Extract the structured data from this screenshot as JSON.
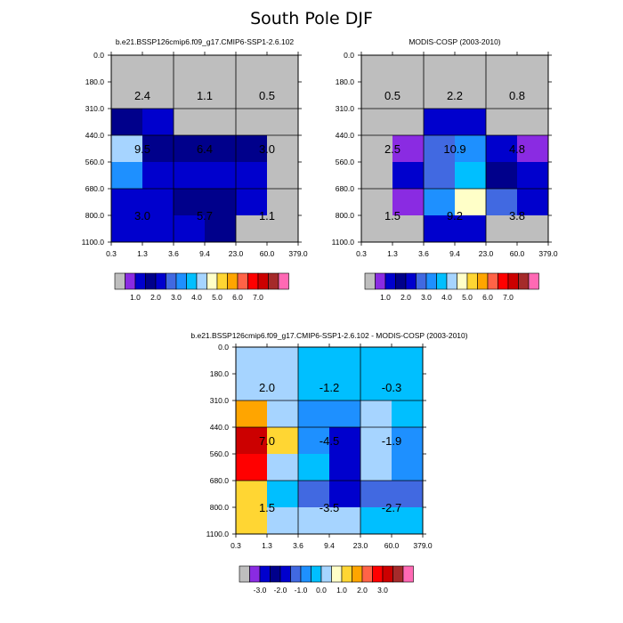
{
  "title": "South Pole DJF",
  "chart_data": [
    {
      "type": "heatmap",
      "panel": "model",
      "title": "b.e21.BSSP126cmip6.f09_g17.CMIP6-SSP1-2.6.102",
      "xlabel": "",
      "ylabel": "",
      "x_ticks": [
        "0.3",
        "1.3",
        "3.6",
        "9.4",
        "23.0",
        "60.0",
        "379.0"
      ],
      "y_ticks": [
        "0.0",
        "180.0",
        "310.0",
        "440.0",
        "560.0",
        "680.0",
        "800.0",
        "1100.0"
      ],
      "cells": [
        [
          "missing",
          "missing",
          "missing",
          "missing",
          "missing",
          "missing"
        ],
        [
          "missing",
          "missing",
          "missing",
          "missing",
          "missing",
          "missing"
        ],
        [
          "1.0-1.5",
          "0.5-1.0",
          "missing",
          "missing",
          "missing",
          "missing"
        ],
        [
          "3.5-4.0",
          "1.0-1.5",
          "1.0-1.5",
          "1.0-1.5",
          "1.0-1.5",
          "missing"
        ],
        [
          "2.5-3.0",
          "1.5-2.0",
          "1.5-2.0",
          "1.5-2.0",
          "1.5-2.0",
          "missing"
        ],
        [
          "0.5-1.0",
          "0.5-1.0",
          "1.0-1.5",
          "1.0-1.5",
          "0.5-1.0",
          "missing"
        ],
        [
          "0.5-1.0",
          "0.5-1.0",
          "1.5-2.0",
          "1.0-1.5",
          "missing",
          "missing"
        ]
      ],
      "values": [
        [
          "2.4",
          "1.1",
          "0.5"
        ],
        [
          "9.5",
          "6.4",
          "3.0"
        ],
        [
          "3.0",
          "5.7",
          "1.1"
        ]
      ],
      "colorbar": {
        "levels": [
          "1.0",
          "2.0",
          "3.0",
          "4.0",
          "5.0",
          "6.0",
          "7.0"
        ],
        "colors": [
          "#BEBEBE",
          "#8A2BE2",
          "#0000CD",
          "#00008B",
          "#0000CD",
          "#4169E1",
          "#1E90FF",
          "#00BFFF",
          "#A6D4FF",
          "#FFFFC8",
          "#FFD633",
          "#FFA500",
          "#FF6347",
          "#FF0000",
          "#CC0000",
          "#A52A2A",
          "#FF69B4"
        ]
      }
    },
    {
      "type": "heatmap",
      "panel": "observation",
      "title": "MODIS-COSP (2003-2010)",
      "xlabel": "",
      "ylabel": "",
      "x_ticks": [
        "0.3",
        "1.3",
        "3.6",
        "9.4",
        "23.0",
        "60.0",
        "379.0"
      ],
      "y_ticks": [
        "0.0",
        "180.0",
        "310.0",
        "440.0",
        "560.0",
        "680.0",
        "800.0",
        "1100.0"
      ],
      "cells": [
        [
          "missing",
          "missing",
          "missing",
          "missing",
          "missing",
          "missing"
        ],
        [
          "missing",
          "missing",
          "missing",
          "missing",
          "missing",
          "missing"
        ],
        [
          "missing",
          "missing",
          "0.5-1.0",
          "0.5-1.0",
          "missing",
          "missing"
        ],
        [
          "missing",
          "0.0-0.5",
          "2.0-2.5",
          "2.5-3.0",
          "0.5-1.0",
          "0.0-0.5"
        ],
        [
          "missing",
          "0.5-1.0",
          "2.0-2.5",
          "3.0-3.5",
          "1.0-1.5",
          "0.5-1.0"
        ],
        [
          "missing",
          "0.0-0.5",
          "2.5-3.0",
          "4.0-4.5",
          "2.0-2.5",
          "0.5-1.0"
        ],
        [
          "missing",
          "missing",
          "0.5-1.0",
          "0.5-1.0",
          "missing",
          "missing"
        ]
      ],
      "values": [
        [
          "0.5",
          "2.2",
          "0.8"
        ],
        [
          "2.5",
          "10.9",
          "4.8"
        ],
        [
          "1.5",
          "9.2",
          "3.8"
        ]
      ],
      "colorbar": {
        "levels": [
          "1.0",
          "2.0",
          "3.0",
          "4.0",
          "5.0",
          "6.0",
          "7.0"
        ],
        "colors": [
          "#BEBEBE",
          "#8A2BE2",
          "#0000CD",
          "#00008B",
          "#0000CD",
          "#4169E1",
          "#1E90FF",
          "#00BFFF",
          "#A6D4FF",
          "#FFFFC8",
          "#FFD633",
          "#FFA500",
          "#FF6347",
          "#FF0000",
          "#CC0000",
          "#A52A2A",
          "#FF69B4"
        ]
      }
    },
    {
      "type": "heatmap",
      "panel": "difference",
      "title": "b.e21.BSSP126cmip6.f09_g17.CMIP6-SSP1-2.6.102 - MODIS-COSP (2003-2010)",
      "xlabel": "",
      "ylabel": "",
      "x_ticks": [
        "0.3",
        "1.3",
        "3.6",
        "9.4",
        "23.0",
        "60.0",
        "379.0"
      ],
      "y_ticks": [
        "0.0",
        "180.0",
        "310.0",
        "440.0",
        "560.0",
        "680.0",
        "800.0",
        "1100.0"
      ],
      "cells": [
        [
          "0.0-0.5",
          "0.0-0.5",
          "-0.5-0.0",
          "-0.5-0.0",
          "-0.5-0.0",
          "-0.5-0.0"
        ],
        [
          "0.0-0.5",
          "0.0-0.5",
          "-0.5-0.0",
          "-0.5-0.0",
          "-0.5-0.0",
          "-0.5-0.0"
        ],
        [
          "1.5-2.0",
          "0.0-0.5",
          "-1.0--0.5",
          "-1.0--0.5",
          "0.0-0.5",
          "-0.5-0.0"
        ],
        [
          "3.0-3.5",
          "1.0-1.5",
          "-1.0--0.5",
          "-2.0--1.5",
          "0.0-0.5",
          "-1.0--0.5"
        ],
        [
          "2.5-3.0",
          "0.0-0.5",
          "-0.5-0.0",
          "-2.0--1.5",
          "0.0-0.5",
          "-1.0--0.5"
        ],
        [
          "1.0-1.5",
          "-0.5-0.0",
          "-1.5--1.0",
          "-3.0--2.5",
          "-1.5--1.0",
          "-1.5--1.0"
        ],
        [
          "1.0-1.5",
          "0.0-0.5",
          "0.0-0.5",
          "0.0-0.5",
          "-0.5-0.0",
          "-0.5-0.0"
        ]
      ],
      "values": [
        [
          "2.0",
          "-1.2",
          "-0.3"
        ],
        [
          "7.0",
          "-4.5",
          "-1.9"
        ],
        [
          "1.5",
          "-3.5",
          "-2.7"
        ]
      ],
      "colorbar": {
        "levels": [
          "-3.0",
          "-2.0",
          "-1.0",
          "0.0",
          "1.0",
          "2.0",
          "3.0"
        ],
        "colors": [
          "#BEBEBE",
          "#8A2BE2",
          "#0000CD",
          "#00008B",
          "#0000CD",
          "#4169E1",
          "#1E90FF",
          "#00BFFF",
          "#A6D4FF",
          "#FFFFC8",
          "#FFD633",
          "#FFA500",
          "#FF6347",
          "#FF0000",
          "#CC0000",
          "#A52A2A",
          "#FF69B4"
        ]
      }
    }
  ]
}
